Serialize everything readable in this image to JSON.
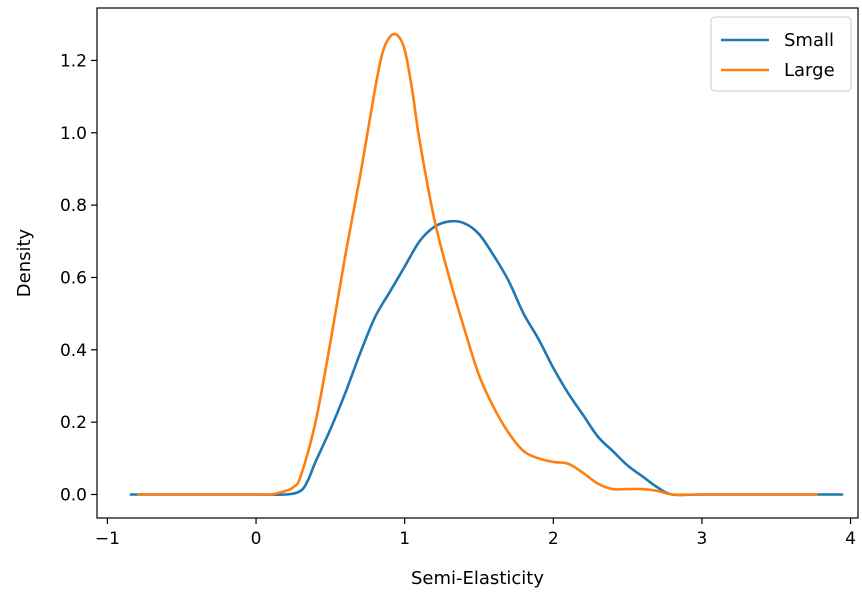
{
  "chart_data": {
    "type": "line",
    "title": "",
    "xlabel": "Semi-Elasticity",
    "ylabel": "Density",
    "xlim": [
      -1.07,
      4.05
    ],
    "ylim": [
      -0.065,
      1.345
    ],
    "xticks": [
      -1,
      0,
      1,
      2,
      3,
      4
    ],
    "xtick_labels": [
      "−1",
      "0",
      "1",
      "2",
      "3",
      "4"
    ],
    "yticks": [
      0.0,
      0.2,
      0.4,
      0.6,
      0.8,
      1.0,
      1.2
    ],
    "ytick_labels": [
      "0.0",
      "0.2",
      "0.4",
      "0.6",
      "0.8",
      "1.0",
      "1.2"
    ],
    "grid": false,
    "legend_position": "top-right",
    "series": [
      {
        "name": "Small",
        "color": "#1f77b4",
        "x": [
          -0.85,
          0.0,
          0.2,
          0.3,
          0.35,
          0.4,
          0.5,
          0.6,
          0.7,
          0.8,
          0.9,
          1.0,
          1.1,
          1.2,
          1.3,
          1.4,
          1.5,
          1.6,
          1.7,
          1.8,
          1.9,
          2.0,
          2.1,
          2.2,
          2.3,
          2.4,
          2.5,
          2.6,
          2.7,
          2.8,
          3.0,
          3.5,
          3.95
        ],
        "y": [
          0.0,
          0.0,
          0.0,
          0.01,
          0.04,
          0.09,
          0.18,
          0.28,
          0.39,
          0.49,
          0.56,
          0.63,
          0.7,
          0.74,
          0.755,
          0.75,
          0.72,
          0.66,
          0.59,
          0.5,
          0.43,
          0.35,
          0.28,
          0.22,
          0.16,
          0.12,
          0.08,
          0.05,
          0.02,
          0.0,
          0.0,
          0.0,
          0.0
        ]
      },
      {
        "name": "Large",
        "color": "#ff7f0e",
        "x": [
          -0.8,
          0.0,
          0.1,
          0.2,
          0.25,
          0.3,
          0.4,
          0.5,
          0.6,
          0.7,
          0.8,
          0.85,
          0.9,
          0.95,
          1.0,
          1.05,
          1.1,
          1.2,
          1.3,
          1.4,
          1.5,
          1.6,
          1.7,
          1.8,
          1.9,
          2.0,
          2.1,
          2.2,
          2.3,
          2.4,
          2.5,
          2.6,
          2.7,
          2.8,
          3.0,
          3.5,
          3.78
        ],
        "y": [
          0.0,
          0.0,
          0.0,
          0.01,
          0.02,
          0.05,
          0.2,
          0.42,
          0.66,
          0.88,
          1.12,
          1.22,
          1.265,
          1.27,
          1.23,
          1.12,
          0.98,
          0.76,
          0.6,
          0.46,
          0.33,
          0.24,
          0.17,
          0.12,
          0.1,
          0.09,
          0.085,
          0.06,
          0.03,
          0.015,
          0.015,
          0.015,
          0.01,
          0.0,
          0.0,
          0.0,
          0.0
        ]
      }
    ]
  }
}
